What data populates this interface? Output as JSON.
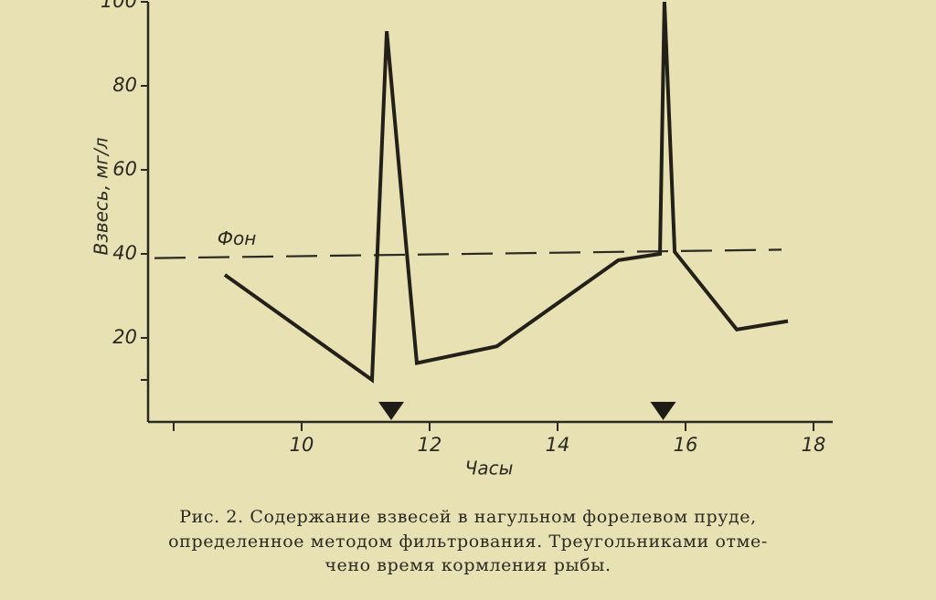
{
  "chart_data": {
    "type": "line",
    "x_label": "Часы",
    "y_label": "Взвесь, мг/л",
    "xlim": [
      7.6,
      18.3
    ],
    "ylim": [
      0,
      100
    ],
    "xticks": [
      10,
      12,
      14,
      16,
      18
    ],
    "xticks_minor": [
      8
    ],
    "yticks": [
      20,
      40,
      60,
      80,
      100
    ],
    "yticks_minor": [
      10
    ],
    "series": [
      {
        "name": "Фон",
        "color": "#2a2a22",
        "dash": true,
        "x": [
          7.7,
          17.5
        ],
        "values": [
          39,
          41
        ]
      },
      {
        "name": "Взвесь",
        "color": "#222018",
        "dash": false,
        "x": [
          8.8,
          11.1,
          11.33,
          11.8,
          13.05,
          14.95,
          15.6,
          15.67,
          15.83,
          16.8,
          17.6
        ],
        "values": [
          35,
          10,
          93,
          14,
          18,
          38.5,
          40,
          100,
          40.5,
          22,
          24
        ]
      }
    ],
    "feeding_times": [
      11.4,
      15.65
    ],
    "caption": [
      "Рис. 2. Содержание взвесей в нагульном форелевом пруде,",
      "определенное методом фильтрования. Треугольниками отме-",
      "чено время кормления рыбы."
    ]
  }
}
